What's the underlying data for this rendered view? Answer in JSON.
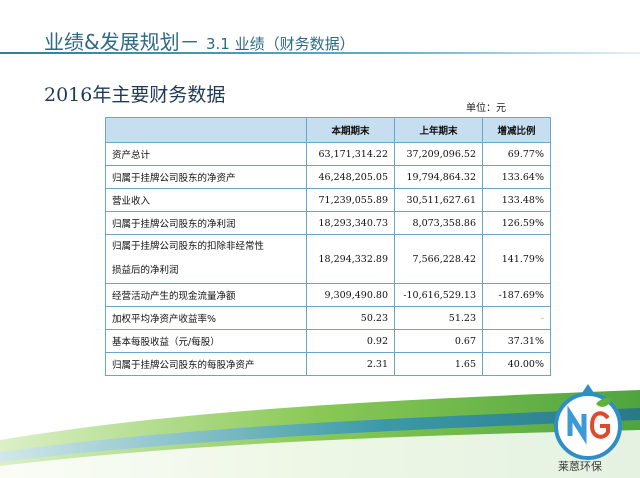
{
  "header": {
    "title": "业绩&发展规划－",
    "subtitle": "3.1 业绩（财务数据）"
  },
  "section": {
    "title": "2016年主要财务数据",
    "unit": "单位：元"
  },
  "table": {
    "headers": [
      "",
      "本期期末",
      "上年期末",
      "增减比例"
    ],
    "rows": [
      {
        "label": "资产总计",
        "current": "63,171,314.22",
        "previous": "37,209,096.52",
        "change": "69.77%"
      },
      {
        "label": "归属于挂牌公司股东的净资产",
        "current": "46,248,205.05",
        "previous": "19,794,864.32",
        "change": "133.64%"
      },
      {
        "label": "营业收入",
        "current": "71,239,055.89",
        "previous": "30,511,627.61",
        "change": "133.48%"
      },
      {
        "label": "归属于挂牌公司股东的净利润",
        "current": "18,293,340.73",
        "previous": "8,073,358.86",
        "change": "126.59%"
      },
      {
        "label_line1": "归属于挂牌公司股东的扣除非经常性",
        "label_line2": "损益后的净利润",
        "current": "18,294,332.89",
        "previous": "7,566,228.42",
        "change": "141.79%"
      },
      {
        "label": "经营活动产生的现金流量净额",
        "current": "9,309,490.80",
        "previous": "-10,616,529.13",
        "change": "-187.69%"
      },
      {
        "label": "加权平均净资产收益率%",
        "current": "50.23",
        "previous": "51.23",
        "change": "-"
      },
      {
        "label": "基本每股收益（元/每股）",
        "current": "0.92",
        "previous": "0.67",
        "change": "37.31%"
      },
      {
        "label": "归属于挂牌公司股东的每股净资产",
        "current": "2.31",
        "previous": "1.65",
        "change": "40.00%"
      }
    ]
  },
  "logo": {
    "mark": "NG",
    "text": "莱蒽环保",
    "colors": {
      "ring": "#2f8fc4",
      "n": "#3a9ad6",
      "g": "#e04a2a",
      "leaf": "#5db33a"
    }
  },
  "colors": {
    "header_text": "#2e6a86",
    "table_border": "#6aa6c9",
    "table_header_bg": "#c6def0",
    "swoosh_green": "#7cc242",
    "swoosh_blue": "#2a8fbf"
  }
}
